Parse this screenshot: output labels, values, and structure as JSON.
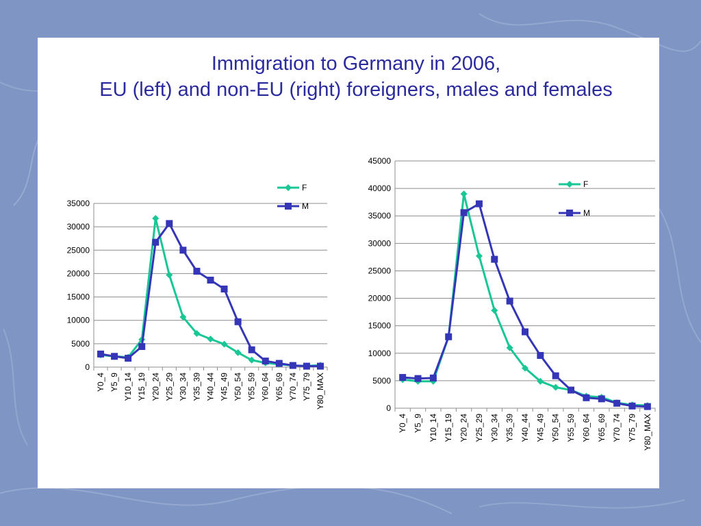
{
  "slide": {
    "title_line_1": "Immigration to Germany in 2006,",
    "title_line_2": "EU (left) and non-EU (right) foreigners, males and females"
  },
  "colors": {
    "background": "#7f96c4",
    "title": "#2b2b9e",
    "series_F": "#19c796",
    "series_M": "#3535b8"
  },
  "chart_data": [
    {
      "type": "line",
      "title": "",
      "xlabel": "",
      "ylabel": "",
      "ylim": [
        0,
        35000
      ],
      "yticks": [
        0,
        5000,
        10000,
        15000,
        20000,
        25000,
        30000,
        35000
      ],
      "grid": true,
      "legend_position": "top-right",
      "categories": [
        "Y0_4",
        "Y5_9",
        "Y10_14",
        "Y15_19",
        "Y20_24",
        "Y25_29",
        "Y30_34",
        "Y35_39",
        "Y40_44",
        "Y45_49",
        "Y50_54",
        "Y55_59",
        "Y60_64",
        "Y65_69",
        "Y70_74",
        "Y75_79",
        "Y80_MAX"
      ],
      "series": [
        {
          "name": "F",
          "marker": "diamond",
          "values": [
            2600,
            2300,
            2100,
            5900,
            31800,
            19700,
            10700,
            7200,
            6000,
            4900,
            3100,
            1500,
            900,
            600,
            350,
            250,
            400
          ]
        },
        {
          "name": "M",
          "marker": "square",
          "values": [
            2800,
            2300,
            1900,
            4400,
            26700,
            30700,
            25000,
            20500,
            18600,
            16700,
            9700,
            3700,
            1300,
            800,
            350,
            200,
            200
          ]
        }
      ]
    },
    {
      "type": "line",
      "title": "",
      "xlabel": "",
      "ylabel": "",
      "ylim": [
        0,
        45000
      ],
      "yticks": [
        0,
        5000,
        10000,
        15000,
        20000,
        25000,
        30000,
        35000,
        40000,
        45000
      ],
      "grid": true,
      "legend_position": "top-right",
      "categories": [
        "Y0_4",
        "Y5_9",
        "Y10_14",
        "Y15_19",
        "Y20_24",
        "Y25_29",
        "Y30_34",
        "Y35_39",
        "Y40_44",
        "Y45_49",
        "Y50_54",
        "Y55_59",
        "Y60_64",
        "Y65_69",
        "Y70_74",
        "Y75_79",
        "Y80_MAX"
      ],
      "series": [
        {
          "name": "F",
          "marker": "diamond",
          "values": [
            5200,
            4900,
            4900,
            13000,
            39000,
            27700,
            17800,
            11000,
            7300,
            4900,
            3800,
            3300,
            2200,
            2000,
            1000,
            600,
            500
          ]
        },
        {
          "name": "M",
          "marker": "square",
          "values": [
            5600,
            5400,
            5500,
            13000,
            35600,
            37200,
            27100,
            19500,
            13900,
            9600,
            5900,
            3300,
            1900,
            1700,
            900,
            400,
            300
          ]
        }
      ]
    }
  ]
}
